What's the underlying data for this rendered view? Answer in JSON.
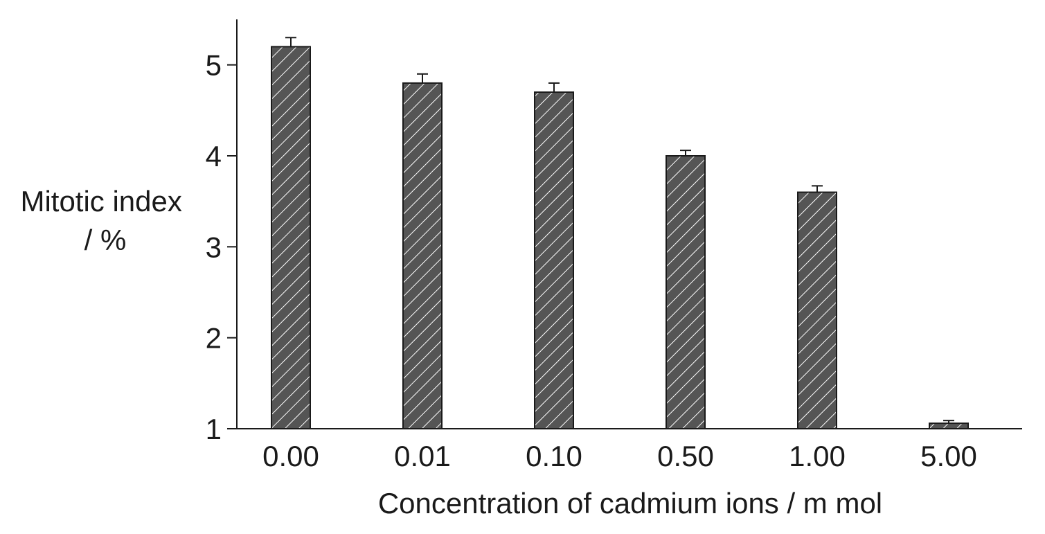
{
  "chart_data": {
    "type": "bar",
    "title": "",
    "xlabel": "Concentration of cadmium ions / m mol",
    "ylabel_lines": [
      "Mitotic index",
      "/ %"
    ],
    "categories": [
      "0.00",
      "0.01",
      "0.10",
      "0.50",
      "1.00",
      "5.00"
    ],
    "values": [
      5.2,
      4.8,
      4.7,
      4.0,
      3.6,
      1.06
    ],
    "error_upper": [
      0.1,
      0.1,
      0.1,
      0.06,
      0.07,
      0.03
    ],
    "ylim": [
      1,
      5.5
    ],
    "yticks": [
      "1",
      "2",
      "3",
      "4",
      "5"
    ],
    "grid": false,
    "bar_color": "#555555",
    "hatch_color": "#ffffff"
  }
}
